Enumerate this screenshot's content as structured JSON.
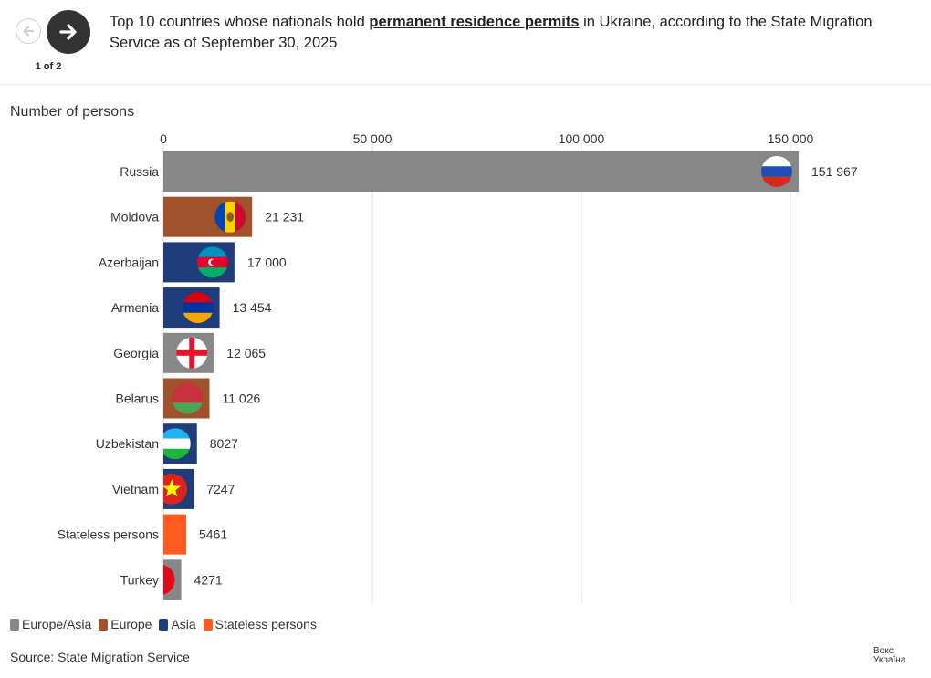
{
  "header": {
    "title_before": "Top 10 countries whose nationals hold ",
    "title_link": "permanent residence permits",
    "title_after": " in Ukraine, according to the State Migration Service as of September 30, 2025",
    "pager": "1 of 2"
  },
  "colors": {
    "europe_asia": "#878787",
    "europe": "#a0522d",
    "asia": "#1f3d7a",
    "stateless": "#ff5a1f"
  },
  "chart_data": {
    "type": "bar",
    "orientation": "horizontal",
    "axis_label": "Number of persons",
    "xlim": [
      0,
      170000
    ],
    "ticks": [
      0,
      50000,
      100000,
      150000
    ],
    "tick_labels": [
      "0",
      "50 000",
      "100 000",
      "150 000"
    ],
    "categories": [
      "Russia",
      "Moldova",
      "Azerbaijan",
      "Armenia",
      "Georgia",
      "Belarus",
      "Uzbekistan",
      "Vietnam",
      "Stateless persons",
      "Turkey"
    ],
    "values": [
      151967,
      21231,
      17000,
      13454,
      12065,
      11026,
      8027,
      7247,
      5461,
      4271
    ],
    "value_labels": [
      "151 967",
      "21 231",
      "17 000",
      "13 454",
      "12 065",
      "11 026",
      "8027",
      "7247",
      "5461",
      "4271"
    ],
    "groups": [
      "Europe/Asia",
      "Europe",
      "Asia",
      "Asia",
      "Europe/Asia",
      "Europe",
      "Asia",
      "Asia",
      "Stateless persons",
      "Europe/Asia"
    ],
    "flags": [
      "russia-flag",
      "moldova-flag",
      "azerbaijan-flag",
      "armenia-flag",
      "georgia-flag",
      "belarus-flag",
      "uzbekistan-flag",
      "vietnam-flag",
      "",
      "turkey-flag"
    ],
    "legend": [
      "Europe/Asia",
      "Europe",
      "Asia",
      "Stateless persons"
    ]
  },
  "source": "Source: State Migration Service",
  "logo": {
    "line1": "Вокс",
    "line2": "Україна"
  }
}
